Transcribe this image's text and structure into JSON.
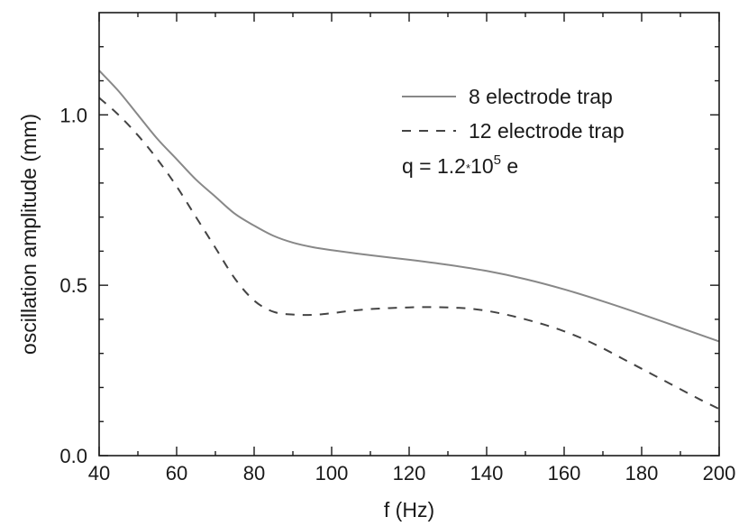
{
  "chart_data": {
    "type": "line",
    "title": "",
    "xlabel": "f (Hz)",
    "ylabel": "oscillation amplitude (mm)",
    "xlim": [
      40,
      200
    ],
    "ylim": [
      0.0,
      1.3
    ],
    "x_ticks": [
      40,
      60,
      80,
      100,
      120,
      140,
      160,
      180,
      200
    ],
    "x_tick_labels": [
      "40",
      "60",
      "80",
      "100",
      "120",
      "140",
      "160",
      "180",
      "200"
    ],
    "y_ticks": [
      0.0,
      0.5,
      1.0
    ],
    "y_tick_labels": [
      "0.0",
      "0.5",
      "1.0"
    ],
    "grid": false,
    "legend_position": "top-right",
    "annotation": {
      "prefix": "q = 1.2",
      "times": "*",
      "base": "10",
      "exponent": "5",
      "suffix": " e"
    },
    "series": [
      {
        "name": "8 electrode trap",
        "style": "solid",
        "color": "#888888",
        "x": [
          40,
          45,
          50,
          55,
          60,
          65,
          70,
          75,
          80,
          85,
          90,
          95,
          100,
          110,
          120,
          130,
          140,
          150,
          160,
          170,
          180,
          190,
          200
        ],
        "y": [
          1.13,
          1.07,
          1.0,
          0.93,
          0.87,
          0.81,
          0.76,
          0.71,
          0.675,
          0.645,
          0.625,
          0.612,
          0.603,
          0.588,
          0.575,
          0.56,
          0.542,
          0.518,
          0.488,
          0.453,
          0.415,
          0.375,
          0.335
        ]
      },
      {
        "name": "12 electrode trap",
        "style": "dashed",
        "color": "#444444",
        "x": [
          40,
          45,
          50,
          55,
          60,
          65,
          70,
          75,
          80,
          85,
          90,
          95,
          100,
          105,
          110,
          115,
          120,
          125,
          130,
          135,
          140,
          145,
          150,
          155,
          160,
          165,
          170,
          175,
          180,
          185,
          190,
          195,
          200
        ],
        "y": [
          1.05,
          1.0,
          0.94,
          0.87,
          0.79,
          0.7,
          0.61,
          0.52,
          0.455,
          0.422,
          0.414,
          0.413,
          0.418,
          0.425,
          0.43,
          0.433,
          0.435,
          0.436,
          0.435,
          0.432,
          0.425,
          0.414,
          0.4,
          0.384,
          0.365,
          0.342,
          0.315,
          0.285,
          0.255,
          0.225,
          0.195,
          0.165,
          0.137
        ]
      }
    ]
  }
}
